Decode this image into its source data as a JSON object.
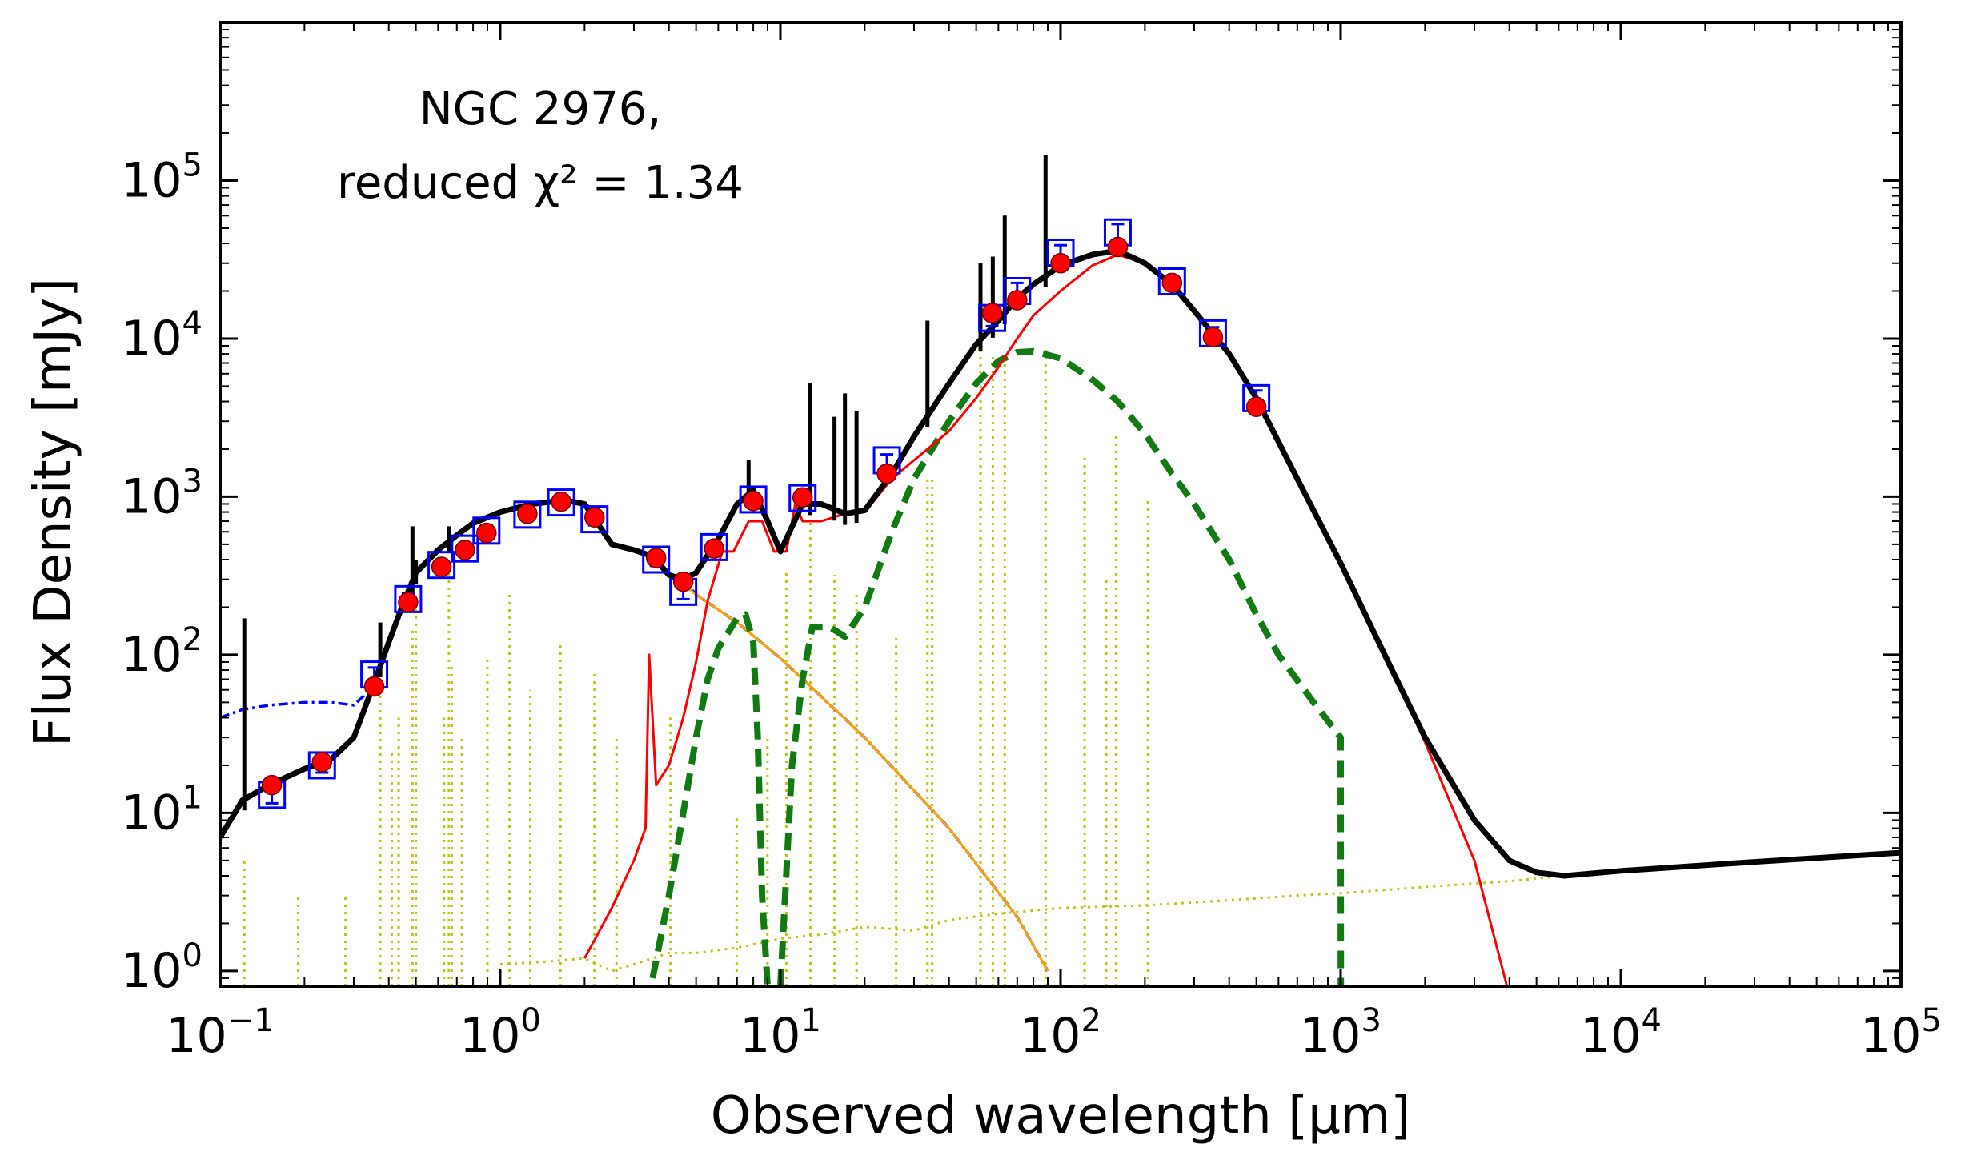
{
  "chart_data": {
    "type": "line",
    "title": "NGC 2976,",
    "annotation_line2": "reduced χ² = 1.34",
    "xlabel": "Observed wavelength [μm]",
    "ylabel": "Flux Density [mJy]",
    "xscale": "log",
    "yscale": "log",
    "xlim": [
      0.1,
      100000
    ],
    "ylim": [
      0.8,
      1000000
    ],
    "x_ticks": [
      {
        "value": 0.1,
        "base": "10",
        "exp": "−1"
      },
      {
        "value": 1,
        "base": "10",
        "exp": "0"
      },
      {
        "value": 10,
        "base": "10",
        "exp": "1"
      },
      {
        "value": 100,
        "base": "10",
        "exp": "2"
      },
      {
        "value": 1000,
        "base": "10",
        "exp": "3"
      },
      {
        "value": 10000,
        "base": "10",
        "exp": "4"
      },
      {
        "value": 100000,
        "base": "10",
        "exp": "5"
      }
    ],
    "y_ticks": [
      {
        "value": 1,
        "base": "10",
        "exp": "0"
      },
      {
        "value": 10,
        "base": "10",
        "exp": "1"
      },
      {
        "value": 100,
        "base": "10",
        "exp": "2"
      },
      {
        "value": 1000,
        "base": "10",
        "exp": "3"
      },
      {
        "value": 10000,
        "base": "10",
        "exp": "4"
      },
      {
        "value": 100000,
        "base": "10",
        "exp": "5"
      }
    ],
    "colors": {
      "total": "#000000",
      "dust": "#ff0000",
      "dust_components": "#127a12",
      "nebular": "#c2c21e",
      "stellar_unattenuated": "#0000ff",
      "agn_tail": "#ffa500",
      "observed": "#0000ff",
      "model": "#ff0000"
    },
    "series": [
      {
        "name": "total_model",
        "style": "solid-thick",
        "color": "#000000",
        "x": [
          0.1,
          0.12,
          0.15,
          0.2,
          0.25,
          0.3,
          0.35,
          0.4,
          0.45,
          0.5,
          0.6,
          0.7,
          0.8,
          1.0,
          1.3,
          1.7,
          2.0,
          2.5,
          3.0,
          3.5,
          4.0,
          4.5,
          5.0,
          6.0,
          7.0,
          8.0,
          9.0,
          10.0,
          12.0,
          14.0,
          17.0,
          20.0,
          25.0,
          30.0,
          40.0,
          50.0,
          60.0,
          70.0,
          80.0,
          100.0,
          130.0,
          160.0,
          200.0,
          250.0,
          300.0,
          400.0,
          500.0,
          700.0,
          1000.0,
          1500.0,
          2000.0,
          3000.0,
          4000.0,
          5000.0,
          6300.0,
          10000.0,
          30000.0,
          100000.0
        ],
        "y": [
          7,
          12,
          15,
          19,
          22,
          30,
          62,
          120,
          210,
          330,
          460,
          570,
          680,
          800,
          900,
          950,
          900,
          500,
          460,
          420,
          320,
          300,
          330,
          540,
          900,
          1100,
          700,
          450,
          900,
          900,
          780,
          820,
          1400,
          2400,
          5200,
          9200,
          13000,
          18000,
          22000,
          29000,
          34000,
          36000,
          30000,
          22000,
          15000,
          8000,
          4200,
          1300,
          380,
          85,
          30,
          9,
          5,
          4.2,
          4,
          4.3,
          4.9,
          5.6
        ]
      },
      {
        "name": "dust_emission",
        "style": "solid-thin",
        "color": "#ff0000",
        "x": [
          2.0,
          2.5,
          3.0,
          3.3,
          3.4,
          3.6,
          4.0,
          4.5,
          5.0,
          5.5,
          6.2,
          6.8,
          7.7,
          8.6,
          9.5,
          10.5,
          11.3,
          12.0,
          14.0,
          17.0,
          20.0,
          25.0,
          30.0,
          40.0,
          50.0,
          60.0,
          70.0,
          80.0,
          100.0,
          130.0,
          160.0,
          200.0,
          250.0,
          300.0,
          400.0,
          500.0,
          700.0,
          1000.0,
          1500.0,
          2000.0,
          3000.0,
          4000.0
        ],
        "y": [
          1.2,
          2.5,
          5,
          8,
          100,
          15,
          20,
          40,
          90,
          220,
          450,
          450,
          700,
          700,
          450,
          450,
          900,
          700,
          700,
          780,
          800,
          1300,
          1700,
          2600,
          4200,
          6600,
          10000,
          14000,
          20000,
          29000,
          34000,
          30000,
          22000,
          15000,
          8000,
          4200,
          1300,
          380,
          90,
          28,
          5,
          0.7
        ]
      },
      {
        "name": "dust_component_1",
        "style": "dashed",
        "color": "#127a12",
        "x": [
          3.5,
          4.0,
          4.5,
          5.0,
          5.5,
          6.0,
          7.0,
          7.5,
          8.0,
          8.3,
          8.6,
          9.0
        ],
        "y": [
          0.9,
          3,
          10,
          30,
          70,
          110,
          170,
          180,
          120,
          30,
          3,
          0.8
        ]
      },
      {
        "name": "dust_component_2",
        "style": "dashed",
        "color": "#127a12",
        "x": [
          10.0,
          11.0,
          12.0,
          13.0,
          15.0,
          17.0,
          20.0,
          25.0,
          30.0,
          40.0,
          50.0,
          60.0,
          70.0,
          80.0,
          100.0,
          130.0,
          160.0,
          200.0,
          250.0,
          300.0,
          400.0,
          500.0,
          600.0,
          800.0,
          1000.0,
          1001.0
        ],
        "y": [
          0.8,
          20,
          70,
          150,
          150,
          130,
          200,
          600,
          1300,
          3000,
          5200,
          7200,
          8200,
          8300,
          7500,
          5500,
          4000,
          2500,
          1400,
          900,
          400,
          180,
          100,
          50,
          30,
          0.8
        ]
      },
      {
        "name": "stellar_unattenuated",
        "style": "dashdot",
        "color": "#0000ff",
        "x": [
          0.1,
          0.12,
          0.15,
          0.2,
          0.25,
          0.3,
          0.35,
          0.4,
          0.45,
          0.5,
          0.6,
          0.7,
          0.8,
          1.0,
          1.3,
          1.7,
          2.0,
          2.5,
          3.0,
          3.5,
          4.0,
          4.5,
          5.0,
          7.0,
          10.0,
          20.0,
          40.0,
          70.0,
          90.0
        ],
        "y": [
          40,
          45,
          48,
          50,
          50,
          48,
          62,
          120,
          210,
          330,
          460,
          570,
          680,
          800,
          900,
          950,
          900,
          500,
          460,
          420,
          320,
          300,
          240,
          160,
          95,
          30,
          8,
          2.2,
          1
        ]
      },
      {
        "name": "agn_tail",
        "style": "solid-thin",
        "color": "#ffa500",
        "x": [
          4.0,
          5.0,
          7.0,
          10.0,
          20.0,
          40.0,
          70.0,
          90.0
        ],
        "y": [
          330,
          240,
          160,
          95,
          30,
          8,
          2.2,
          1
        ]
      },
      {
        "name": "nebular_continuum",
        "style": "dotted",
        "color": "#c2c21e",
        "x": [
          1.0,
          1.5,
          2.0,
          2.5,
          3.0,
          4.0,
          5.0,
          7.0,
          10.0,
          14.0,
          20.0,
          30.0,
          40.0,
          60.0,
          100.0,
          200.0,
          400.0,
          700.0,
          1000.0,
          2000.0,
          4000.0,
          6300.0
        ],
        "y": [
          1.1,
          1.15,
          1.2,
          1.0,
          1.1,
          1.3,
          1.3,
          1.4,
          1.6,
          1.7,
          1.9,
          1.8,
          2.1,
          2.3,
          2.5,
          2.6,
          2.8,
          3.0,
          3.1,
          3.4,
          3.7,
          4.0
        ]
      }
    ],
    "emission_lines_total": [
      {
        "x": 0.122,
        "y": 170
      },
      {
        "x": 0.373,
        "y": 160
      },
      {
        "x": 0.486,
        "y": 650
      },
      {
        "x": 0.5,
        "y": 400
      },
      {
        "x": 0.656,
        "y": 650
      },
      {
        "x": 7.7,
        "y": 1700
      },
      {
        "x": 12.8,
        "y": 5200
      },
      {
        "x": 15.6,
        "y": 3200
      },
      {
        "x": 17.0,
        "y": 4500
      },
      {
        "x": 18.7,
        "y": 3500
      },
      {
        "x": 33.5,
        "y": 13000
      },
      {
        "x": 51.8,
        "y": 30000
      },
      {
        "x": 57.3,
        "y": 33000
      },
      {
        "x": 88.4,
        "y": 145000
      },
      {
        "x": 63.2,
        "y": 60000
      }
    ],
    "emission_lines_nebular": [
      {
        "x": 0.122,
        "y": 5
      },
      {
        "x": 0.19,
        "y": 3
      },
      {
        "x": 0.28,
        "y": 3
      },
      {
        "x": 0.373,
        "y": 120
      },
      {
        "x": 0.41,
        "y": 25
      },
      {
        "x": 0.434,
        "y": 40
      },
      {
        "x": 0.486,
        "y": 150
      },
      {
        "x": 0.5,
        "y": 200
      },
      {
        "x": 0.63,
        "y": 40
      },
      {
        "x": 0.656,
        "y": 400
      },
      {
        "x": 0.672,
        "y": 90
      },
      {
        "x": 0.73,
        "y": 30
      },
      {
        "x": 0.9,
        "y": 100
      },
      {
        "x": 1.08,
        "y": 250
      },
      {
        "x": 1.28,
        "y": 60
      },
      {
        "x": 1.64,
        "y": 120
      },
      {
        "x": 2.17,
        "y": 80
      },
      {
        "x": 2.6,
        "y": 30
      },
      {
        "x": 4.05,
        "y": 40
      },
      {
        "x": 6.98,
        "y": 10
      },
      {
        "x": 8.99,
        "y": 30
      },
      {
        "x": 10.5,
        "y": 350
      },
      {
        "x": 12.8,
        "y": 700
      },
      {
        "x": 15.6,
        "y": 320
      },
      {
        "x": 18.7,
        "y": 250
      },
      {
        "x": 25.9,
        "y": 130
      },
      {
        "x": 33.5,
        "y": 1300
      },
      {
        "x": 34.8,
        "y": 1300
      },
      {
        "x": 51.8,
        "y": 9000
      },
      {
        "x": 57.3,
        "y": 8000
      },
      {
        "x": 63.2,
        "y": 7000
      },
      {
        "x": 88.4,
        "y": 9000
      },
      {
        "x": 121.9,
        "y": 1800
      },
      {
        "x": 145.5,
        "y": 300
      },
      {
        "x": 157.7,
        "y": 2500
      },
      {
        "x": 205.0,
        "y": 1000
      }
    ],
    "observed_points": {
      "x": [
        0.153,
        0.231,
        0.355,
        0.469,
        0.617,
        0.748,
        0.893,
        1.25,
        1.65,
        2.17,
        3.6,
        4.5,
        5.8,
        8.0,
        12.0,
        24.0,
        57.0,
        70.0,
        100.0,
        160.0,
        250.0,
        350.0,
        500.0
      ],
      "y": [
        13,
        20,
        75,
        225,
        370,
        470,
        610,
        770,
        920,
        720,
        400,
        250,
        480,
        960,
        980,
        1700,
        13500,
        20000,
        35000,
        47000,
        23000,
        10800,
        4200
      ],
      "yerr": [
        1.5,
        2,
        8,
        20,
        30,
        40,
        50,
        60,
        80,
        60,
        35,
        25,
        40,
        80,
        80,
        150,
        1500,
        2500,
        4000,
        6000,
        2000,
        1000,
        500
      ]
    },
    "model_points": {
      "x": [
        0.153,
        0.231,
        0.355,
        0.469,
        0.617,
        0.748,
        0.893,
        1.25,
        1.65,
        2.17,
        3.6,
        4.5,
        5.8,
        8.0,
        12.0,
        24.0,
        57.0,
        70.0,
        100.0,
        160.0,
        250.0,
        350.0,
        500.0
      ],
      "y": [
        15,
        21,
        63,
        215,
        360,
        460,
        590,
        780,
        930,
        740,
        410,
        290,
        470,
        940,
        990,
        1400,
        14500,
        17500,
        30000,
        38000,
        22500,
        10200,
        3700
      ]
    }
  }
}
